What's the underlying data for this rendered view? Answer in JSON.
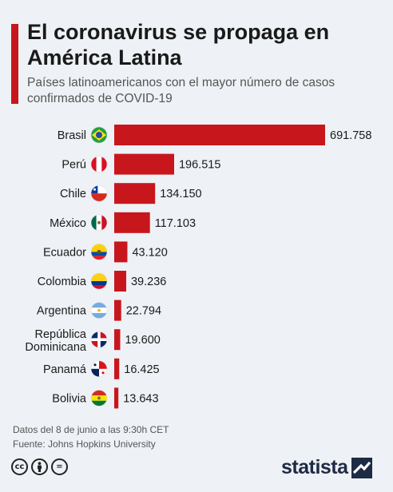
{
  "header": {
    "title": "El coronavirus se propaga en América Latina",
    "subtitle": "Países latinoamericanos con el mayor número de casos confirmados de COVID-19"
  },
  "chart_data": {
    "type": "bar",
    "orientation": "horizontal",
    "categories": [
      "Brasil",
      "Perú",
      "Chile",
      "México",
      "Ecuador",
      "Colombia",
      "Argentina",
      "República Dominicana",
      "Panamá",
      "Bolivia"
    ],
    "values": [
      691758,
      196515,
      134150,
      117103,
      43120,
      39236,
      22794,
      19600,
      16425,
      13643
    ],
    "value_labels": [
      "691.758",
      "196.515",
      "134.150",
      "117.103",
      "43.120",
      "39.236",
      "22.794",
      "19.600",
      "16.425",
      "13.643"
    ],
    "flags": [
      "brazil-flag-icon",
      "peru-flag-icon",
      "chile-flag-icon",
      "mexico-flag-icon",
      "ecuador-flag-icon",
      "colombia-flag-icon",
      "argentina-flag-icon",
      "dominican-republic-flag-icon",
      "panama-flag-icon",
      "bolivia-flag-icon"
    ],
    "bar_color": "#c8161d",
    "xlim": [
      0,
      691758
    ],
    "grid": false
  },
  "footer": {
    "note": "Datos del 8 de junio a las 9:30h CET",
    "source": "Fuente: Johns Hopkins University",
    "license_icons": [
      "cc",
      "by",
      "="
    ],
    "logo": "statista"
  },
  "colors": {
    "accent": "#c8161d",
    "background": "#eef1f5",
    "logo": "#1f2a44"
  }
}
